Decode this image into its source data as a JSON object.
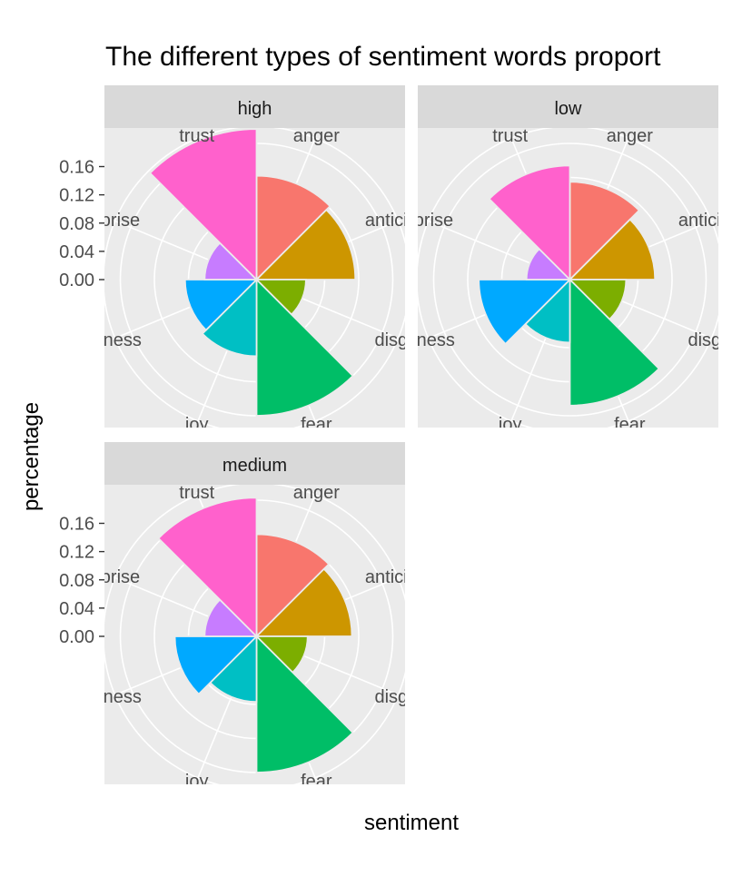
{
  "chart_data": {
    "type": "polar-bar",
    "title": "The different types of sentiment words proport",
    "xlabel": "sentiment",
    "ylabel": "percentage",
    "yticks": [
      0.0,
      0.04,
      0.08,
      0.12,
      0.16
    ],
    "ytick_labels": [
      "0.00",
      "0.04",
      "0.08",
      "0.12",
      "0.16"
    ],
    "rmax": 0.16,
    "grid": true,
    "categories": [
      "anger",
      "anticipation",
      "disgust",
      "fear",
      "joy",
      "sadness",
      "surprise",
      "trust"
    ],
    "category_labels": [
      "anger",
      "anticipati",
      "disgus",
      "fear",
      "joy",
      "adness",
      "urprise",
      "trust"
    ],
    "colors": [
      "#F8766D",
      "#CD9600",
      "#7CAE00",
      "#00BE67",
      "#00BFC4",
      "#00A9FF",
      "#C77CFF",
      "#FF61CC"
    ],
    "panels": [
      {
        "name": "high",
        "values": [
          0.122,
          0.116,
          0.058,
          0.16,
          0.09,
          0.084,
          0.061,
          0.177
        ]
      },
      {
        "name": "low",
        "values": [
          0.115,
          0.1,
          0.066,
          0.148,
          0.074,
          0.107,
          0.051,
          0.134
        ]
      },
      {
        "name": "medium",
        "values": [
          0.12,
          0.112,
          0.06,
          0.16,
          0.077,
          0.096,
          0.061,
          0.163
        ]
      }
    ]
  }
}
